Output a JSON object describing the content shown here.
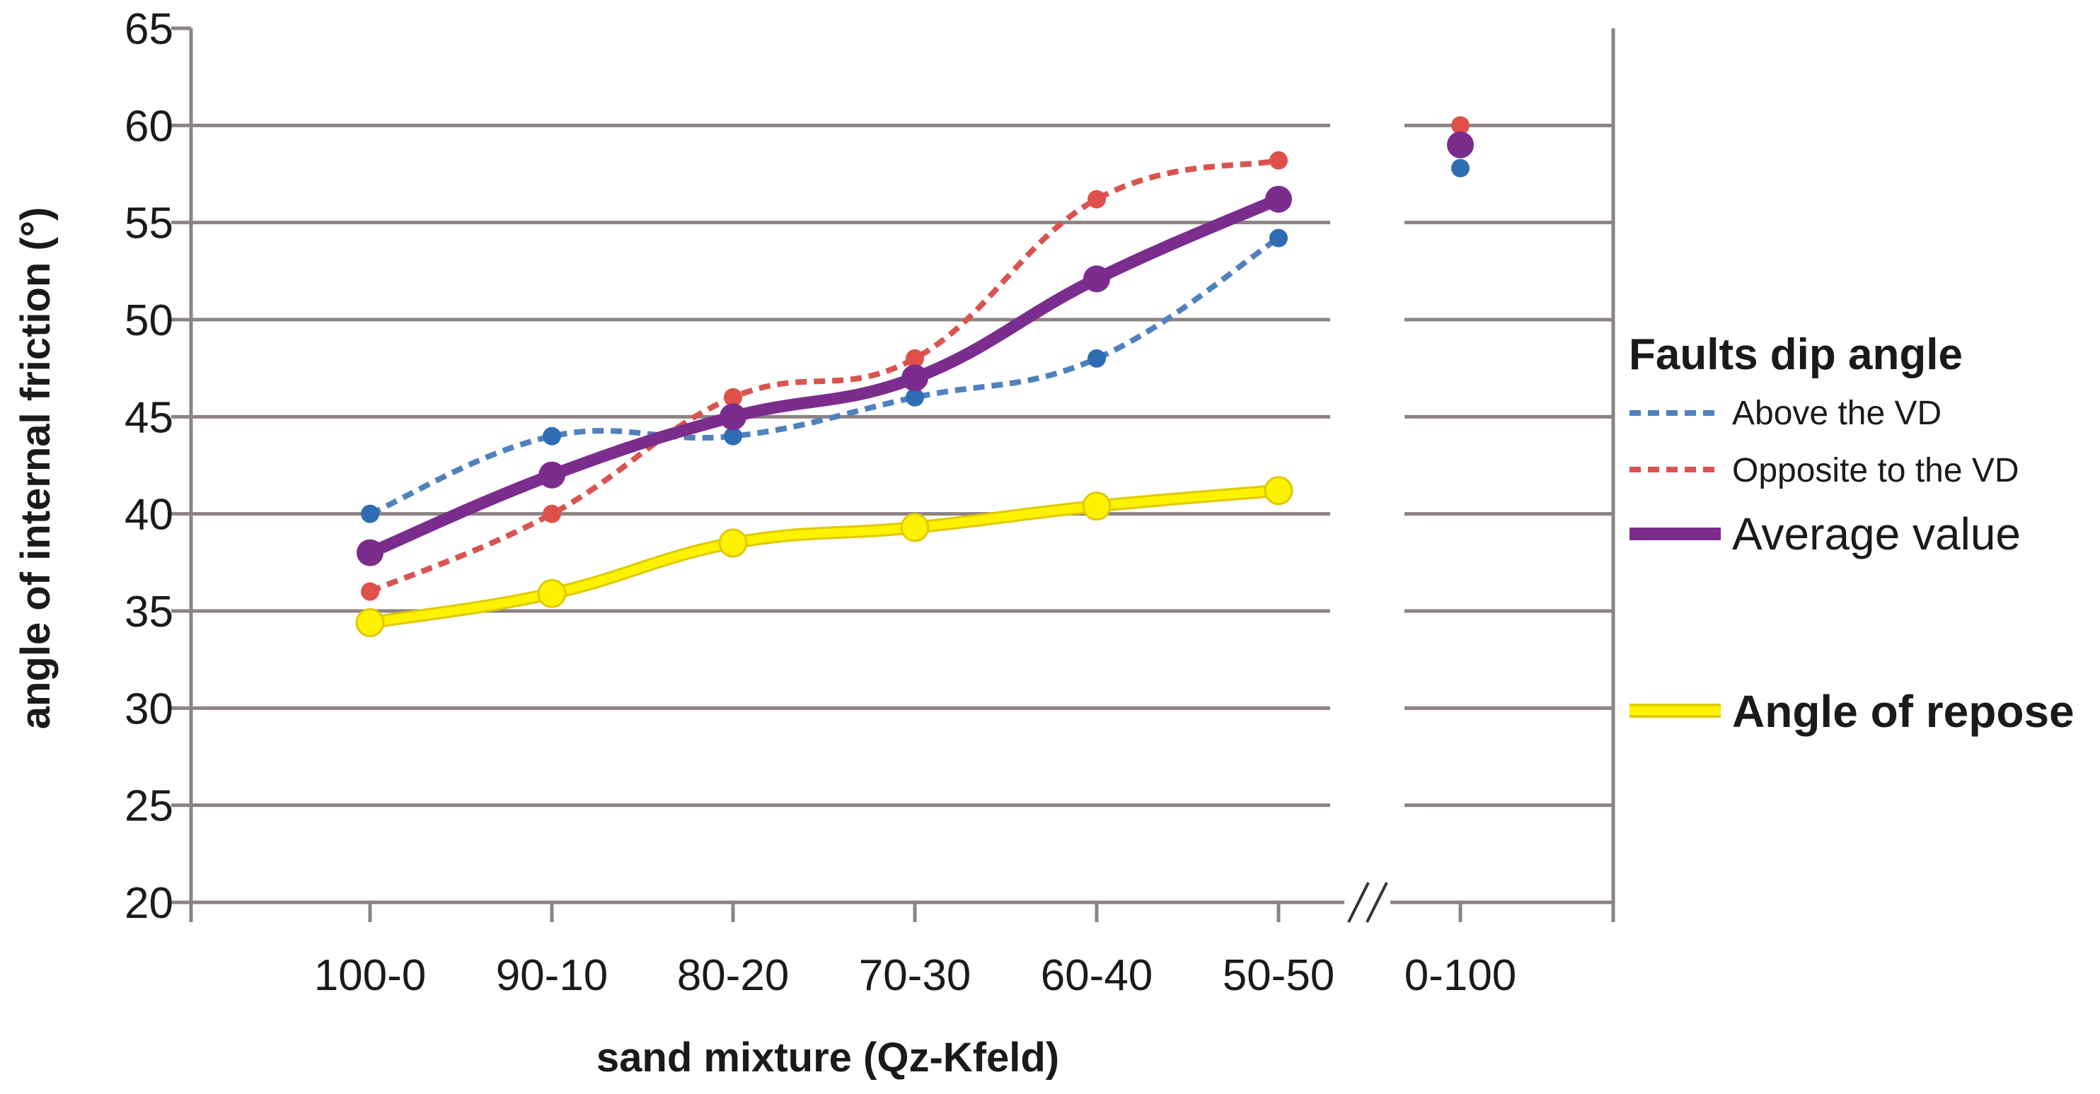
{
  "chart_data": {
    "type": "line",
    "title": "",
    "xlabel": "sand mixture (Qz-Kfeld)",
    "ylabel": "angle of internal friction (°)",
    "ylim": [
      20,
      65
    ],
    "yticks": [
      20,
      25,
      30,
      35,
      40,
      45,
      50,
      55,
      60,
      65
    ],
    "categories": [
      "100-0",
      "90-10",
      "80-20",
      "70-30",
      "60-40",
      "50-50",
      "0-100"
    ],
    "axis_break": "between 50-50 and 0-100",
    "grid": true,
    "legend_position": "right",
    "legend_title": "Faults dip angle",
    "series": [
      {
        "name": "Above the VD",
        "style": "dashed",
        "color": "#4f81bd",
        "marker_color": "#2e6db3",
        "values": [
          40,
          44,
          44,
          46,
          48,
          54.2,
          57.8
        ]
      },
      {
        "name": "Opposite to the VD",
        "style": "dashed",
        "color": "#d9534f",
        "marker_color": "#e0504a",
        "values": [
          36,
          40,
          46,
          48,
          56.2,
          58.2,
          60
        ]
      },
      {
        "name": "Average value",
        "style": "solid-thick",
        "color": "#7b2d8e",
        "marker_color": "#7b2d8e",
        "values": [
          38,
          42,
          45,
          47,
          52.1,
          56.2,
          59
        ]
      },
      {
        "name": "Angle of repose",
        "style": "solid-outlined",
        "color": "#fff200",
        "outline_color": "#e0c800",
        "marker_color": "#fff200",
        "values": [
          34.4,
          35.9,
          38.5,
          39.3,
          40.4,
          41.2,
          null
        ]
      }
    ]
  }
}
